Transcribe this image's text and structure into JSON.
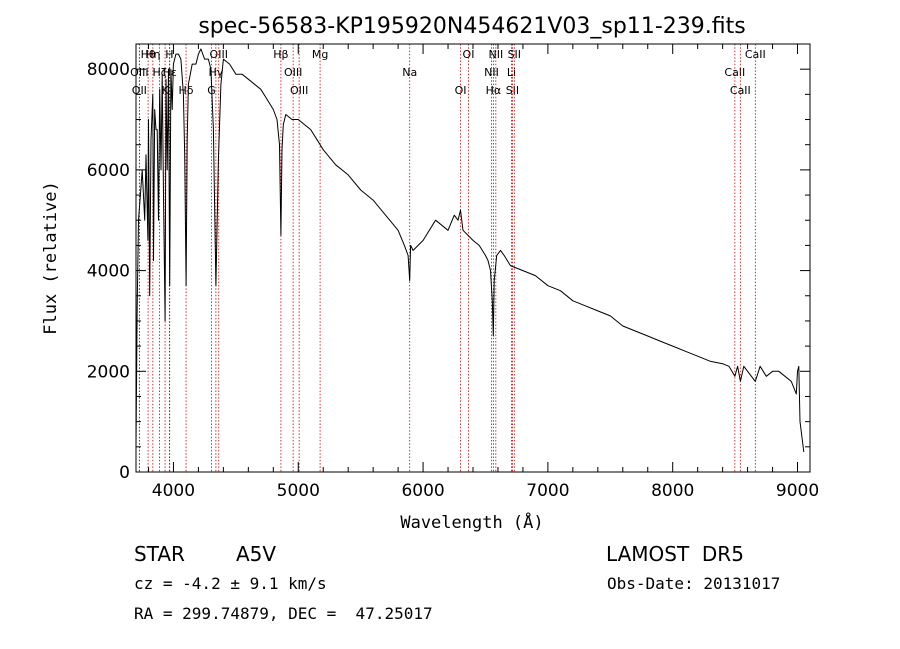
{
  "chart_data": {
    "type": "line",
    "title": "spec-56583-KP195920N454621V03_sp11-239.fits",
    "xlabel": "Wavelength (Å)",
    "ylabel": "Flux (relative)",
    "xlim": [
      3700,
      9100
    ],
    "ylim": [
      0,
      8500
    ],
    "xticks": [
      4000,
      5000,
      6000,
      7000,
      8000,
      9000
    ],
    "yticks": [
      0,
      2000,
      4000,
      6000,
      8000
    ],
    "grid": false,
    "series": [
      {
        "x": [
          3700,
          3710,
          3720,
          3735,
          3750,
          3770,
          3780,
          3795,
          3800,
          3810,
          3820,
          3835,
          3840,
          3850,
          3860,
          3870,
          3880,
          3890,
          3900,
          3910,
          3920,
          3933,
          3940,
          3950,
          3960,
          3970,
          3980,
          3990,
          4000,
          4020,
          4040,
          4060,
          4080,
          4090,
          4101,
          4110,
          4120,
          4150,
          4180,
          4200,
          4220,
          4250,
          4280,
          4300,
          4320,
          4340,
          4360,
          4380,
          4400,
          4450,
          4500,
          4550,
          4600,
          4650,
          4700,
          4750,
          4800,
          4830,
          4850,
          4861,
          4870,
          4880,
          4900,
          4950,
          5000,
          5050,
          5100,
          5150,
          5200,
          5300,
          5400,
          5500,
          5600,
          5700,
          5800,
          5850,
          5880,
          5893,
          5900,
          5920,
          6000,
          6100,
          6200,
          6250,
          6280,
          6300,
          6320,
          6400,
          6450,
          6500,
          6520,
          6540,
          6555,
          6563,
          6570,
          6590,
          6620,
          6650,
          6700,
          6800,
          6900,
          7000,
          7100,
          7200,
          7300,
          7400,
          7500,
          7600,
          7700,
          7800,
          7900,
          8000,
          8100,
          8200,
          8300,
          8400,
          8450,
          8498,
          8520,
          8542,
          8570,
          8600,
          8662,
          8700,
          8750,
          8800,
          8850,
          8900,
          8950,
          8990,
          9000,
          9010,
          9020,
          9050
        ],
        "y": [
          500,
          3300,
          5000,
          5500,
          6000,
          5000,
          6300,
          4600,
          7000,
          3500,
          6600,
          7500,
          4200,
          7200,
          6800,
          6800,
          5000,
          7600,
          6000,
          7900,
          5500,
          3000,
          7800,
          6000,
          8000,
          3700,
          8000,
          7200,
          8100,
          8300,
          8300,
          8200,
          7500,
          6300,
          3700,
          6600,
          7700,
          8100,
          8100,
          8300,
          8400,
          8200,
          8200,
          8000,
          6800,
          3700,
          6200,
          7700,
          8200,
          8100,
          7900,
          7900,
          7800,
          7700,
          7600,
          7400,
          7200,
          7000,
          6500,
          4700,
          6400,
          6900,
          7100,
          7000,
          7000,
          6900,
          6800,
          6600,
          6400,
          6100,
          5900,
          5600,
          5400,
          5100,
          4800,
          4500,
          4300,
          3800,
          4500,
          4400,
          4600,
          5000,
          4800,
          5100,
          5000,
          5200,
          4800,
          4600,
          4500,
          4300,
          4200,
          4000,
          3400,
          2700,
          3800,
          4300,
          4400,
          4300,
          4100,
          4000,
          3900,
          3700,
          3600,
          3400,
          3300,
          3200,
          3100,
          2900,
          2800,
          2700,
          2600,
          2500,
          2400,
          2300,
          2200,
          2150,
          2100,
          1900,
          2100,
          1800,
          2100,
          2000,
          1800,
          2100,
          1900,
          2000,
          2000,
          1900,
          1800,
          1550,
          2000,
          2100,
          1000,
          400
        ]
      }
    ],
    "lines": [
      {
        "name": "Hθ",
        "wavelength": 3797
      },
      {
        "name": "OIII",
        "wavelength": 3727
      },
      {
        "name": "OII",
        "wavelength": 3727
      },
      {
        "name": "Hη",
        "wavelength": 3835
      },
      {
        "name": "Hζ",
        "wavelength": 3889
      },
      {
        "name": "K",
        "wavelength": 3933
      },
      {
        "name": "H",
        "wavelength": 3968
      },
      {
        "name": "Hε",
        "wavelength": 3970
      },
      {
        "name": "Hδ",
        "wavelength": 4101
      },
      {
        "name": "OIII",
        "wavelength": 4363
      },
      {
        "name": "Hγ",
        "wavelength": 4340
      },
      {
        "name": "G",
        "wavelength": 4305
      },
      {
        "name": "Hβ",
        "wavelength": 4861
      },
      {
        "name": "OIII",
        "wavelength": 4959
      },
      {
        "name": "OIII",
        "wavelength": 5007
      },
      {
        "name": "Mg",
        "wavelength": 5175
      },
      {
        "name": "Na",
        "wavelength": 5893
      },
      {
        "name": "OI",
        "wavelength": 6300
      },
      {
        "name": "OI",
        "wavelength": 6364
      },
      {
        "name": "NII",
        "wavelength": 6548
      },
      {
        "name": "Hα",
        "wavelength": 6563
      },
      {
        "name": "NII",
        "wavelength": 6583
      },
      {
        "name": "Li",
        "wavelength": 6708
      },
      {
        "name": "SII",
        "wavelength": 6716
      },
      {
        "name": "SII",
        "wavelength": 6731
      },
      {
        "name": "CaII",
        "wavelength": 8498
      },
      {
        "name": "CaII",
        "wavelength": 8542
      },
      {
        "name": "CaII",
        "wavelength": 8662
      }
    ]
  },
  "info": {
    "object_class": "STAR",
    "subclass": "A5V",
    "survey": "LAMOST  DR5",
    "redshift_text": "cz = -4.2 ± 9.1 km/s",
    "obs_date": "Obs-Date: 20131017",
    "coords": "RA = 299.74879, DEC =  47.25017"
  },
  "colors": {
    "spectrum": "#000000",
    "line_marker": "#c00000",
    "axes": "#000000"
  }
}
